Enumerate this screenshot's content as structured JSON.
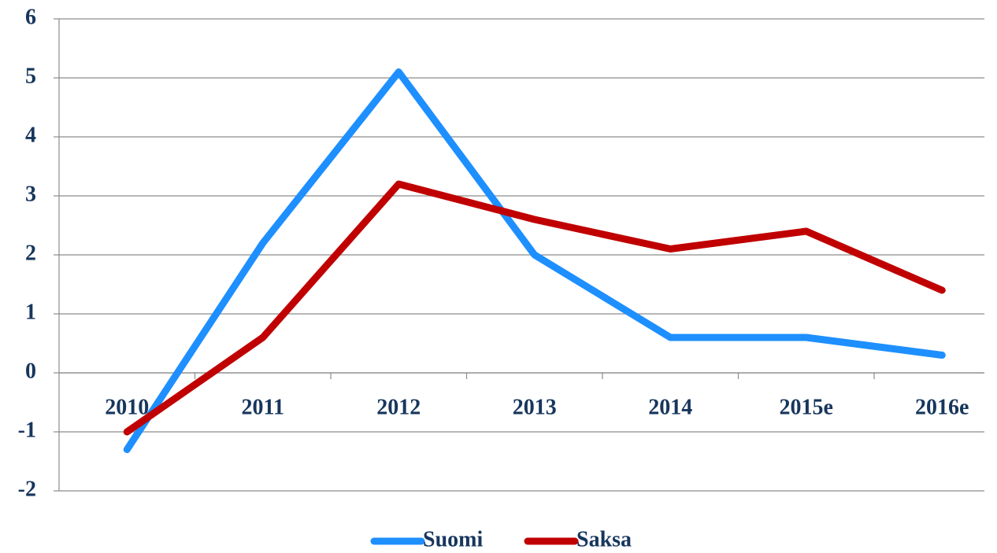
{
  "chart_data": {
    "type": "line",
    "categories": [
      "2010",
      "2011",
      "2012",
      "2013",
      "2014",
      "2015e",
      "2016e"
    ],
    "series": [
      {
        "name": "Suomi",
        "color": "#1e8fff",
        "values": [
          -1.3,
          2.2,
          5.1,
          2.0,
          0.6,
          0.6,
          0.3
        ]
      },
      {
        "name": "Saksa",
        "color": "#c00000",
        "values": [
          -1.0,
          0.6,
          3.2,
          2.6,
          2.1,
          2.4,
          1.4
        ]
      }
    ],
    "ylim": [
      -2,
      6
    ],
    "yticks": [
      -2,
      -1,
      0,
      1,
      2,
      3,
      4,
      5,
      6
    ],
    "grid": true,
    "legend": "bottom"
  }
}
